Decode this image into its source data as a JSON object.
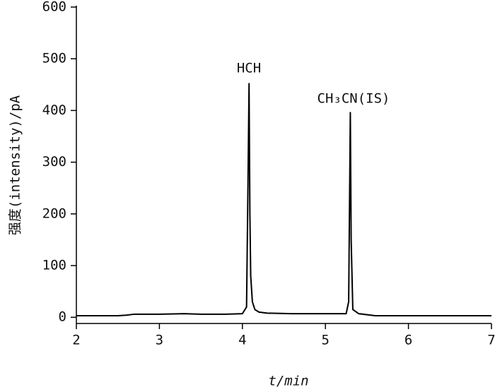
{
  "chart_data": {
    "type": "line",
    "x_label": "t/min",
    "y_label": "强度(intensity)/pA",
    "annotations": [
      "HCH",
      "CH₃CN(IS)"
    ],
    "x": [
      2,
      2.5,
      2.6,
      2.7,
      3.0,
      3.3,
      3.5,
      3.8,
      4.0,
      4.05,
      4.07,
      4.08,
      4.09,
      4.1,
      4.12,
      4.15,
      4.2,
      4.3,
      4.6,
      5.0,
      5.25,
      5.28,
      5.3,
      5.31,
      5.33,
      5.4,
      5.6,
      6.0,
      7.0
    ],
    "series": [
      {
        "color": "#000000",
        "values": [
          3,
          3,
          4,
          6,
          6,
          7,
          6,
          6,
          7,
          20,
          300,
          452,
          200,
          80,
          30,
          15,
          10,
          8,
          7,
          7,
          7,
          30,
          396,
          150,
          15,
          7,
          3,
          3,
          3
        ]
      }
    ],
    "xlim": [
      2,
      7
    ],
    "xticks": [
      2,
      3,
      4,
      5,
      6,
      7
    ],
    "ylim": [
      -12,
      600
    ],
    "yticks": [
      0,
      100,
      200,
      300,
      400,
      500,
      600
    ],
    "grid": false
  }
}
